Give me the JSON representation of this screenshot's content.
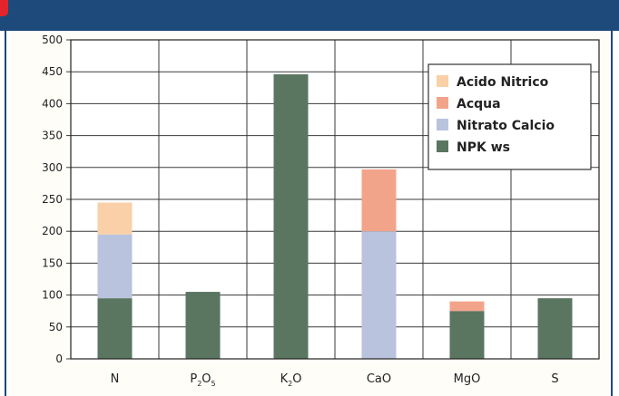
{
  "chart_data": {
    "type": "bar",
    "stacked": true,
    "categories": [
      {
        "base": "N",
        "sub1": "",
        "mid": "",
        "sub2": ""
      },
      {
        "base": "P",
        "sub1": "2",
        "mid": "O",
        "sub2": "5"
      },
      {
        "base": "K",
        "sub1": "2",
        "mid": "O",
        "sub2": ""
      },
      {
        "base": "CaO",
        "sub1": "",
        "mid": "",
        "sub2": ""
      },
      {
        "base": "MgO",
        "sub1": "",
        "mid": "",
        "sub2": ""
      },
      {
        "base": "S",
        "sub1": "",
        "mid": "",
        "sub2": ""
      }
    ],
    "series": [
      {
        "name": "NPK ws",
        "color": "#5a7560",
        "values": [
          95,
          105,
          446,
          0,
          75,
          95
        ]
      },
      {
        "name": "Nitrato Calcio",
        "color": "#b9c3dd",
        "values": [
          100,
          0,
          0,
          200,
          0,
          0
        ]
      },
      {
        "name": "Acqua",
        "color": "#f2a48a",
        "values": [
          0,
          0,
          0,
          97,
          15,
          0
        ]
      },
      {
        "name": "Acido Nitrico",
        "color": "#f9d0a8",
        "values": [
          50,
          0,
          0,
          0,
          0,
          0
        ]
      }
    ],
    "legend_order": [
      "Acido Nitrico",
      "Acqua",
      "Nitrato Calcio",
      "NPK ws"
    ],
    "ylim": [
      0,
      500
    ],
    "yticks": [
      0,
      50,
      100,
      150,
      200,
      250,
      300,
      350,
      400,
      450,
      500
    ],
    "grid": true,
    "legend_position": "top-right",
    "title": "",
    "xlabel": "",
    "ylabel": ""
  }
}
